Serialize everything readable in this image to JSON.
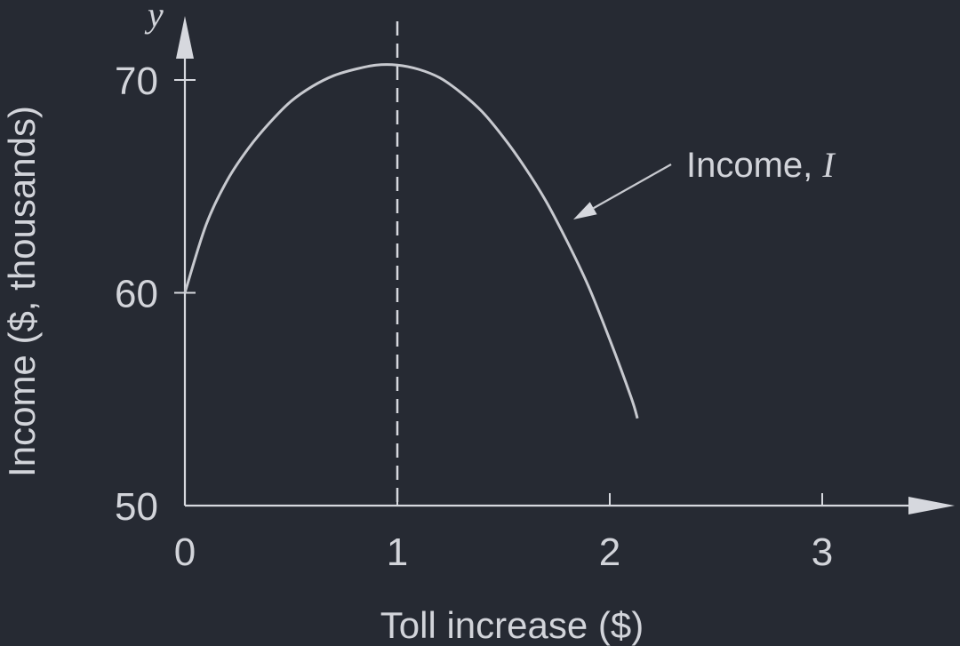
{
  "chart_data": {
    "type": "line",
    "xlabel": "Toll increase ($)",
    "ylabel": "Income ($, thousands)",
    "y_axis_var": "y",
    "xlim": [
      0,
      3.6
    ],
    "ylim": [
      50,
      70
    ],
    "x_ticks": [
      "0",
      "1",
      "2",
      "3"
    ],
    "y_ticks": [
      "50",
      "60",
      "70"
    ],
    "grid": false,
    "series": [
      {
        "name": "Income, I",
        "x": [
          0,
          0.1,
          0.2,
          0.3,
          0.4,
          0.5,
          0.6,
          0.7,
          0.8,
          0.9,
          1.0,
          1.1,
          1.2,
          1.3,
          1.4,
          1.5,
          1.6,
          1.7,
          1.8,
          1.9,
          2.0,
          2.1,
          2.13
        ],
        "y": [
          60.0,
          63.2,
          65.3,
          66.8,
          68.0,
          69.0,
          69.7,
          70.2,
          70.5,
          70.7,
          70.7,
          70.5,
          70.1,
          69.4,
          68.5,
          67.3,
          65.9,
          64.3,
          62.4,
          60.3,
          57.8,
          55.1,
          54.1
        ]
      }
    ],
    "annotations": [
      {
        "type": "vertical-dashed-line",
        "x": 1.0
      },
      {
        "type": "label-arrow",
        "text": "Income, ",
        "var": "I",
        "points_to_x": 1.8
      }
    ],
    "colors": {
      "background": "#262a33",
      "curve": "#c7c9cf",
      "axis": "#d6d8de",
      "text": "#d2d4da"
    }
  }
}
